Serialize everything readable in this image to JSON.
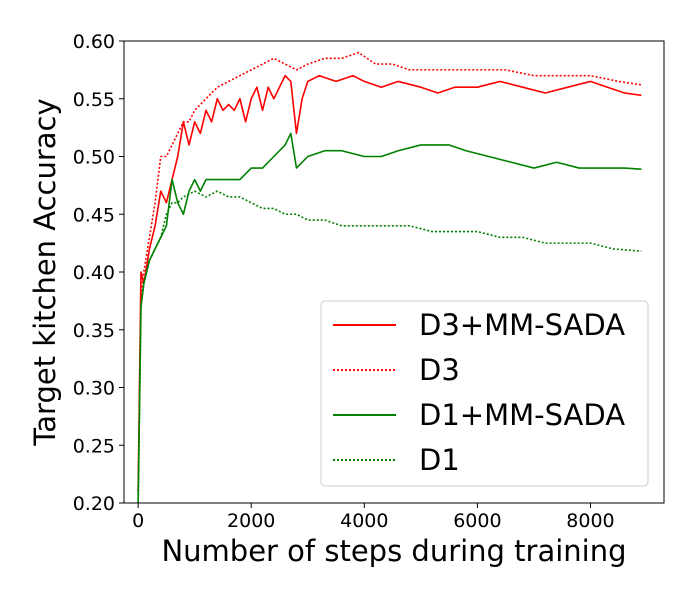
{
  "chart_data": {
    "type": "line",
    "title": "",
    "xlabel": "Number of steps during training",
    "ylabel": "Target kitchen Accuracy",
    "xlim": [
      -250,
      9300
    ],
    "ylim": [
      0.2,
      0.6
    ],
    "xticks": [
      0,
      2000,
      4000,
      6000,
      8000
    ],
    "xtick_labels": [
      "0",
      "2000",
      "4000",
      "6000",
      "8000"
    ],
    "yticks": [
      0.2,
      0.25,
      0.3,
      0.35,
      0.4,
      0.45,
      0.5,
      0.55,
      0.6
    ],
    "ytick_labels": [
      "0.20",
      "0.25",
      "0.30",
      "0.35",
      "0.40",
      "0.45",
      "0.50",
      "0.55",
      "0.60"
    ],
    "grid": false,
    "legend_position": "lower-right",
    "series": [
      {
        "name": "D3+MM-SADA",
        "color": "#ff0000",
        "style": "solid",
        "x": [
          0,
          50,
          100,
          200,
          300,
          400,
          500,
          600,
          700,
          800,
          900,
          1000,
          1100,
          1200,
          1300,
          1400,
          1500,
          1600,
          1700,
          1800,
          1900,
          2000,
          2100,
          2200,
          2300,
          2400,
          2500,
          2600,
          2700,
          2800,
          2900,
          3000,
          3200,
          3500,
          3800,
          4000,
          4300,
          4600,
          5000,
          5300,
          5600,
          6000,
          6400,
          6800,
          7200,
          7600,
          8000,
          8300,
          8600,
          8900
        ],
        "y": [
          0.21,
          0.4,
          0.39,
          0.42,
          0.44,
          0.47,
          0.46,
          0.48,
          0.5,
          0.53,
          0.51,
          0.53,
          0.52,
          0.54,
          0.53,
          0.55,
          0.54,
          0.545,
          0.54,
          0.55,
          0.53,
          0.55,
          0.56,
          0.54,
          0.56,
          0.55,
          0.56,
          0.57,
          0.565,
          0.52,
          0.55,
          0.565,
          0.57,
          0.565,
          0.57,
          0.565,
          0.56,
          0.565,
          0.56,
          0.555,
          0.56,
          0.56,
          0.565,
          0.56,
          0.555,
          0.56,
          0.565,
          0.56,
          0.555,
          0.553
        ]
      },
      {
        "name": "D3",
        "color": "#ff0000",
        "style": "dotted",
        "x": [
          0,
          50,
          100,
          200,
          300,
          400,
          500,
          600,
          700,
          800,
          900,
          1000,
          1200,
          1400,
          1600,
          1800,
          2000,
          2200,
          2400,
          2600,
          2800,
          3000,
          3300,
          3600,
          3900,
          4200,
          4500,
          4800,
          5100,
          5500,
          6000,
          6500,
          7000,
          7500,
          8000,
          8500,
          8900
        ],
        "y": [
          0.21,
          0.38,
          0.4,
          0.43,
          0.46,
          0.5,
          0.5,
          0.51,
          0.52,
          0.53,
          0.53,
          0.54,
          0.55,
          0.56,
          0.565,
          0.57,
          0.575,
          0.58,
          0.585,
          0.58,
          0.575,
          0.58,
          0.585,
          0.585,
          0.59,
          0.58,
          0.58,
          0.575,
          0.575,
          0.575,
          0.575,
          0.575,
          0.57,
          0.57,
          0.57,
          0.565,
          0.562
        ]
      },
      {
        "name": "D1+MM-SADA",
        "color": "#008000",
        "style": "solid",
        "x": [
          0,
          50,
          100,
          200,
          300,
          400,
          500,
          600,
          700,
          800,
          900,
          1000,
          1100,
          1200,
          1400,
          1600,
          1800,
          2000,
          2200,
          2400,
          2600,
          2700,
          2800,
          3000,
          3300,
          3600,
          4000,
          4300,
          4600,
          5000,
          5300,
          5500,
          5800,
          6200,
          6600,
          7000,
          7400,
          7800,
          8200,
          8600,
          8900
        ],
        "y": [
          0.2,
          0.37,
          0.39,
          0.41,
          0.42,
          0.43,
          0.44,
          0.48,
          0.46,
          0.45,
          0.47,
          0.48,
          0.47,
          0.48,
          0.48,
          0.48,
          0.48,
          0.49,
          0.49,
          0.5,
          0.51,
          0.52,
          0.49,
          0.5,
          0.505,
          0.505,
          0.5,
          0.5,
          0.505,
          0.51,
          0.51,
          0.51,
          0.505,
          0.5,
          0.495,
          0.49,
          0.495,
          0.49,
          0.49,
          0.49,
          0.489
        ]
      },
      {
        "name": "D1",
        "color": "#008000",
        "style": "dotted",
        "x": [
          0,
          50,
          100,
          200,
          300,
          400,
          500,
          600,
          700,
          800,
          1000,
          1200,
          1400,
          1600,
          1800,
          2000,
          2200,
          2400,
          2600,
          2800,
          3000,
          3300,
          3600,
          4000,
          4400,
          4800,
          5200,
          5600,
          6000,
          6400,
          6800,
          7200,
          7600,
          8000,
          8400,
          8900
        ],
        "y": [
          0.2,
          0.37,
          0.39,
          0.41,
          0.42,
          0.43,
          0.45,
          0.46,
          0.46,
          0.465,
          0.47,
          0.465,
          0.47,
          0.465,
          0.465,
          0.46,
          0.455,
          0.455,
          0.45,
          0.45,
          0.445,
          0.445,
          0.44,
          0.44,
          0.44,
          0.44,
          0.435,
          0.435,
          0.435,
          0.43,
          0.43,
          0.425,
          0.425,
          0.425,
          0.42,
          0.418
        ]
      }
    ]
  }
}
